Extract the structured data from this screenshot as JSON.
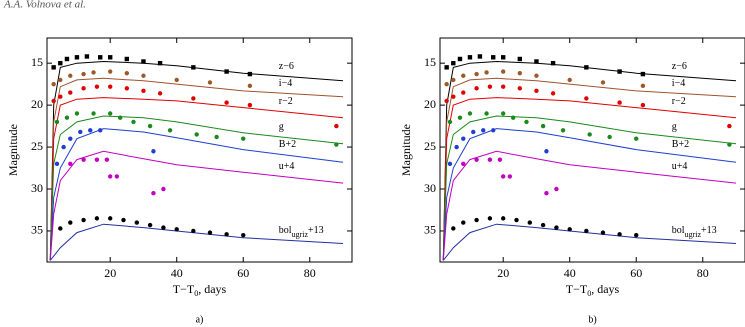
{
  "header": "A.A. Volnova et al.",
  "chart_data": [
    {
      "type": "scatter",
      "caption": "a)",
      "ylabel": "Magnitude",
      "xlabel": {
        "main": "T−T",
        "sub": "0",
        "tail": ", days"
      },
      "xlim": [
        1,
        92.7
      ],
      "ylim": [
        12,
        38.7
      ],
      "invert_y": true,
      "xticks": [
        20,
        40,
        60,
        80
      ],
      "yticks": [
        15,
        20,
        25,
        30,
        35
      ],
      "series": [
        {
          "name": {
            "main": "z−6"
          },
          "color": "#000000",
          "marker": "square",
          "x": [
            3,
            5,
            7,
            10,
            13,
            17,
            20,
            25,
            30,
            35,
            45,
            55,
            62
          ],
          "values": [
            15.5,
            15,
            14.5,
            14.3,
            14.2,
            14.3,
            14.3,
            14.5,
            14.8,
            15,
            15.5,
            16,
            16.3
          ],
          "model": {
            "color": "#000000",
            "x": [
              2,
              3,
              5,
              10,
              18,
              30,
              40,
              60,
              90
            ],
            "values": [
              38.5,
              20,
              15.5,
              15,
              14.8,
              15,
              15.3,
              16.2,
              17.1
            ]
          }
        },
        {
          "name": {
            "main": "i−4"
          },
          "color": "#9c5a2a",
          "marker": "circle",
          "x": [
            3,
            5,
            8,
            12,
            15,
            20,
            25,
            30,
            40,
            50,
            62
          ],
          "values": [
            17.5,
            17,
            16.5,
            16.3,
            16.1,
            16,
            16.2,
            16.5,
            17,
            17.3,
            17.7
          ],
          "model": {
            "color": "#a0522d",
            "x": [
              2,
              3,
              5,
              10,
              18,
              30,
              40,
              60,
              90
            ],
            "values": [
              38.5,
              22,
              17.8,
              17,
              16.8,
              17.1,
              17.5,
              18.3,
              19
            ]
          }
        },
        {
          "name": {
            "main": "r−2"
          },
          "color": "#e00000",
          "marker": "circle",
          "x": [
            3,
            5,
            8,
            12,
            16,
            20,
            25,
            30,
            35,
            45,
            55,
            62,
            88
          ],
          "values": [
            19.5,
            19,
            18.5,
            18,
            17.8,
            17.8,
            18,
            18.3,
            18.6,
            19.2,
            19.7,
            20,
            22.5
          ],
          "model": {
            "color": "#e00000",
            "x": [
              2,
              3,
              5,
              10,
              18,
              30,
              40,
              60,
              90
            ],
            "values": [
              38.5,
              24,
              20,
              19.3,
              19.1,
              19.3,
              19.5,
              20.3,
              21.5
            ]
          }
        },
        {
          "name": {
            "main": "g"
          },
          "color": "#1a8a1a",
          "marker": "circle",
          "x": [
            4,
            7,
            10,
            15,
            20,
            23,
            27,
            32,
            38,
            46,
            52,
            60,
            88
          ],
          "values": [
            22,
            21.5,
            21,
            21,
            21,
            21.5,
            22,
            22.5,
            23,
            23.5,
            23.8,
            24,
            24.7
          ],
          "model": {
            "color": "#1a8a1a",
            "x": [
              2,
              3,
              5,
              10,
              18,
              30,
              40,
              60,
              90
            ],
            "values": [
              38.5,
              27,
              23.5,
              22,
              21.3,
              21.5,
              22,
              23.3,
              24.6
            ]
          }
        },
        {
          "name": {
            "main": "B+2"
          },
          "color": "#1f3fd0",
          "marker": "circle",
          "x": [
            4,
            6,
            8,
            11,
            14,
            17,
            33
          ],
          "values": [
            27,
            25,
            24,
            23.2,
            23,
            23,
            25.5
          ],
          "model": {
            "color": "#1f3fd0",
            "x": [
              2,
              3,
              5,
              10,
              18,
              30,
              40,
              60,
              90
            ],
            "values": [
              38.5,
              31,
              27.5,
              24,
              22.8,
              23.2,
              23.9,
              25.3,
              26.8
            ]
          }
        },
        {
          "name": {
            "main": "u+4"
          },
          "color": "#c000c0",
          "marker": "circle",
          "x": [
            8,
            12,
            16,
            19,
            20,
            22,
            33,
            36
          ],
          "values": [
            27,
            26.5,
            26.5,
            26.5,
            28.5,
            28.5,
            30.5,
            30
          ],
          "model": {
            "color": "#c000c0",
            "x": [
              2,
              3,
              5,
              10,
              18,
              30,
              40,
              60,
              90
            ],
            "values": [
              38.5,
              33,
              29,
              26.5,
              25.5,
              26.4,
              27.1,
              28,
              29.3
            ]
          }
        },
        {
          "name": {
            "main": "bol",
            "sub": "ugriz",
            "tail": "+13"
          },
          "color": "#000000",
          "marker": "circle",
          "x": [
            5,
            8,
            12,
            16,
            20,
            24,
            28,
            32,
            36,
            40,
            45,
            50,
            55,
            60
          ],
          "values": [
            34.7,
            34,
            33.7,
            33.5,
            33.5,
            33.7,
            34,
            34.3,
            34.6,
            34.8,
            35,
            35.2,
            35.4,
            35.5
          ],
          "model": {
            "color": "#2030a0",
            "x": [
              2,
              3,
              5,
              10,
              18,
              30,
              40,
              60,
              90
            ],
            "values": [
              38.5,
              38,
              37,
              35.2,
              34.2,
              34.6,
              35,
              35.8,
              36.5
            ]
          }
        }
      ]
    },
    {
      "type": "scatter",
      "caption": "b)",
      "ylabel": "Magnitude",
      "xlabel": {
        "main": "T−T",
        "sub": "0",
        "tail": ", days"
      },
      "xlim": [
        1,
        92.7
      ],
      "ylim": [
        12,
        38.7
      ],
      "invert_y": true,
      "xticks": [
        20,
        40,
        60,
        80
      ],
      "yticks": [
        15,
        20,
        25,
        30,
        35
      ],
      "series": [
        {
          "name": {
            "main": "z−6"
          },
          "color": "#000000",
          "marker": "square",
          "x": [
            3,
            5,
            7,
            10,
            13,
            17,
            20,
            25,
            30,
            35,
            45,
            55,
            62
          ],
          "values": [
            15.5,
            15,
            14.5,
            14.3,
            14.2,
            14.3,
            14.3,
            14.5,
            14.8,
            15,
            15.5,
            16,
            16.3
          ],
          "model": {
            "color": "#000000",
            "x": [
              2,
              3,
              5,
              10,
              18,
              30,
              40,
              60,
              90
            ],
            "values": [
              38.5,
              20,
              15.5,
              15,
              14.8,
              15,
              15.3,
              16.2,
              17.1
            ]
          }
        },
        {
          "name": {
            "main": "i−4"
          },
          "color": "#9c5a2a",
          "marker": "circle",
          "x": [
            3,
            5,
            8,
            12,
            15,
            20,
            25,
            30,
            40,
            50,
            62
          ],
          "values": [
            17.5,
            17,
            16.5,
            16.3,
            16.1,
            16,
            16.2,
            16.5,
            17,
            17.3,
            17.7
          ],
          "model": {
            "color": "#a0522d",
            "x": [
              2,
              3,
              5,
              10,
              18,
              30,
              40,
              60,
              90
            ],
            "values": [
              38.5,
              22,
              17.8,
              17,
              16.8,
              17.1,
              17.5,
              18.3,
              19
            ]
          }
        },
        {
          "name": {
            "main": "r−2"
          },
          "color": "#e00000",
          "marker": "circle",
          "x": [
            3,
            5,
            8,
            12,
            16,
            20,
            25,
            30,
            35,
            45,
            55,
            62,
            88
          ],
          "values": [
            19.5,
            19,
            18.5,
            18,
            17.8,
            17.8,
            18,
            18.3,
            18.6,
            19.2,
            19.7,
            20,
            22.5
          ],
          "model": {
            "color": "#e00000",
            "x": [
              2,
              3,
              5,
              10,
              18,
              30,
              40,
              60,
              90
            ],
            "values": [
              38.5,
              24,
              20,
              19.3,
              19.1,
              19.3,
              19.5,
              20.3,
              21.5
            ]
          }
        },
        {
          "name": {
            "main": "g"
          },
          "color": "#1a8a1a",
          "marker": "circle",
          "x": [
            4,
            7,
            10,
            15,
            20,
            23,
            27,
            32,
            38,
            46,
            52,
            60,
            88
          ],
          "values": [
            22,
            21.5,
            21,
            21,
            21,
            21.5,
            22,
            22.5,
            23,
            23.5,
            23.8,
            24,
            24.7
          ],
          "model": {
            "color": "#1a8a1a",
            "x": [
              2,
              3,
              5,
              10,
              18,
              30,
              40,
              60,
              90
            ],
            "values": [
              38.5,
              27,
              23.5,
              22,
              21.3,
              21.5,
              22,
              23.3,
              24.6
            ]
          }
        },
        {
          "name": {
            "main": "B+2"
          },
          "color": "#1f3fd0",
          "marker": "circle",
          "x": [
            4,
            6,
            8,
            11,
            14,
            17,
            33
          ],
          "values": [
            27,
            25,
            24,
            23.2,
            23,
            23,
            25.5
          ],
          "model": {
            "color": "#1f3fd0",
            "x": [
              2,
              3,
              5,
              10,
              18,
              30,
              40,
              60,
              90
            ],
            "values": [
              38.5,
              31,
              27.5,
              24,
              22.8,
              23.2,
              23.9,
              25.3,
              26.8
            ]
          }
        },
        {
          "name": {
            "main": "u+4"
          },
          "color": "#c000c0",
          "marker": "circle",
          "x": [
            8,
            12,
            16,
            19,
            20,
            22,
            33,
            36
          ],
          "values": [
            27,
            26.5,
            26.5,
            26.5,
            28.5,
            28.5,
            30.5,
            30
          ],
          "model": {
            "color": "#c000c0",
            "x": [
              2,
              3,
              5,
              10,
              18,
              30,
              40,
              60,
              90
            ],
            "values": [
              38.5,
              33,
              29,
              26.5,
              25.5,
              26.4,
              27.1,
              28,
              29.3
            ]
          }
        },
        {
          "name": {
            "main": "bol",
            "sub": "ugriz",
            "tail": "+13"
          },
          "color": "#000000",
          "marker": "circle",
          "x": [
            5,
            8,
            12,
            16,
            20,
            24,
            28,
            32,
            36,
            40,
            45,
            50,
            55,
            60
          ],
          "values": [
            34.7,
            34,
            33.7,
            33.5,
            33.5,
            33.7,
            34,
            34.3,
            34.6,
            34.8,
            35,
            35.2,
            35.4,
            35.5
          ],
          "model": {
            "color": "#2030a0",
            "x": [
              2,
              3,
              5,
              10,
              18,
              30,
              40,
              60,
              90
            ],
            "values": [
              38.5,
              38,
              37,
              35.2,
              34.2,
              34.6,
              35,
              35.8,
              36.5
            ]
          }
        }
      ]
    }
  ]
}
